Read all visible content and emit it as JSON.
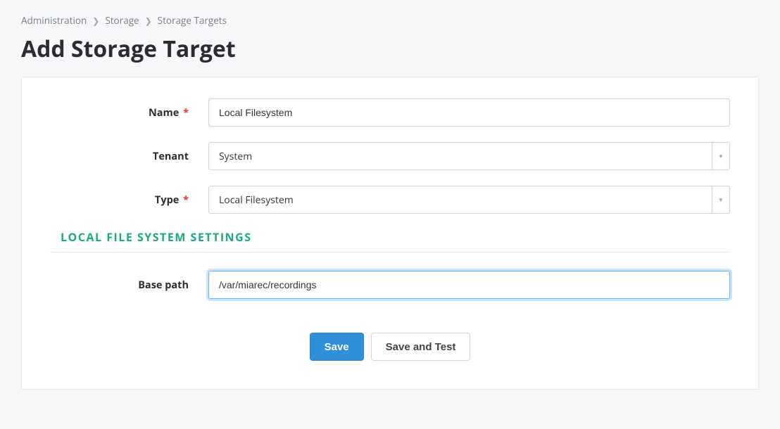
{
  "breadcrumb": {
    "items": [
      "Administration",
      "Storage",
      "Storage Targets"
    ]
  },
  "page": {
    "title": "Add Storage Target"
  },
  "form": {
    "name": {
      "label": "Name",
      "required_mark": "*",
      "value": "Local Filesystem"
    },
    "tenant": {
      "label": "Tenant",
      "selected": "System"
    },
    "type": {
      "label": "Type",
      "required_mark": "*",
      "selected": "Local Filesystem"
    },
    "section": {
      "title": "Local File System Settings"
    },
    "base_path": {
      "label": "Base path",
      "value": "/var/miarec/recordings"
    }
  },
  "actions": {
    "save": "Save",
    "save_and_test": "Save and Test"
  },
  "colors": {
    "page_bg": "#f5f7f9",
    "card_border": "#e6e8ea",
    "input_border": "#cfd4d9",
    "focus_border": "#6bb3f2",
    "focus_glow": "rgba(107,179,242,0.35)",
    "section_title": "#1aa886",
    "primary_btn": "#2f8fd8",
    "required": "#e23c3c",
    "text_muted": "#7a8187"
  }
}
